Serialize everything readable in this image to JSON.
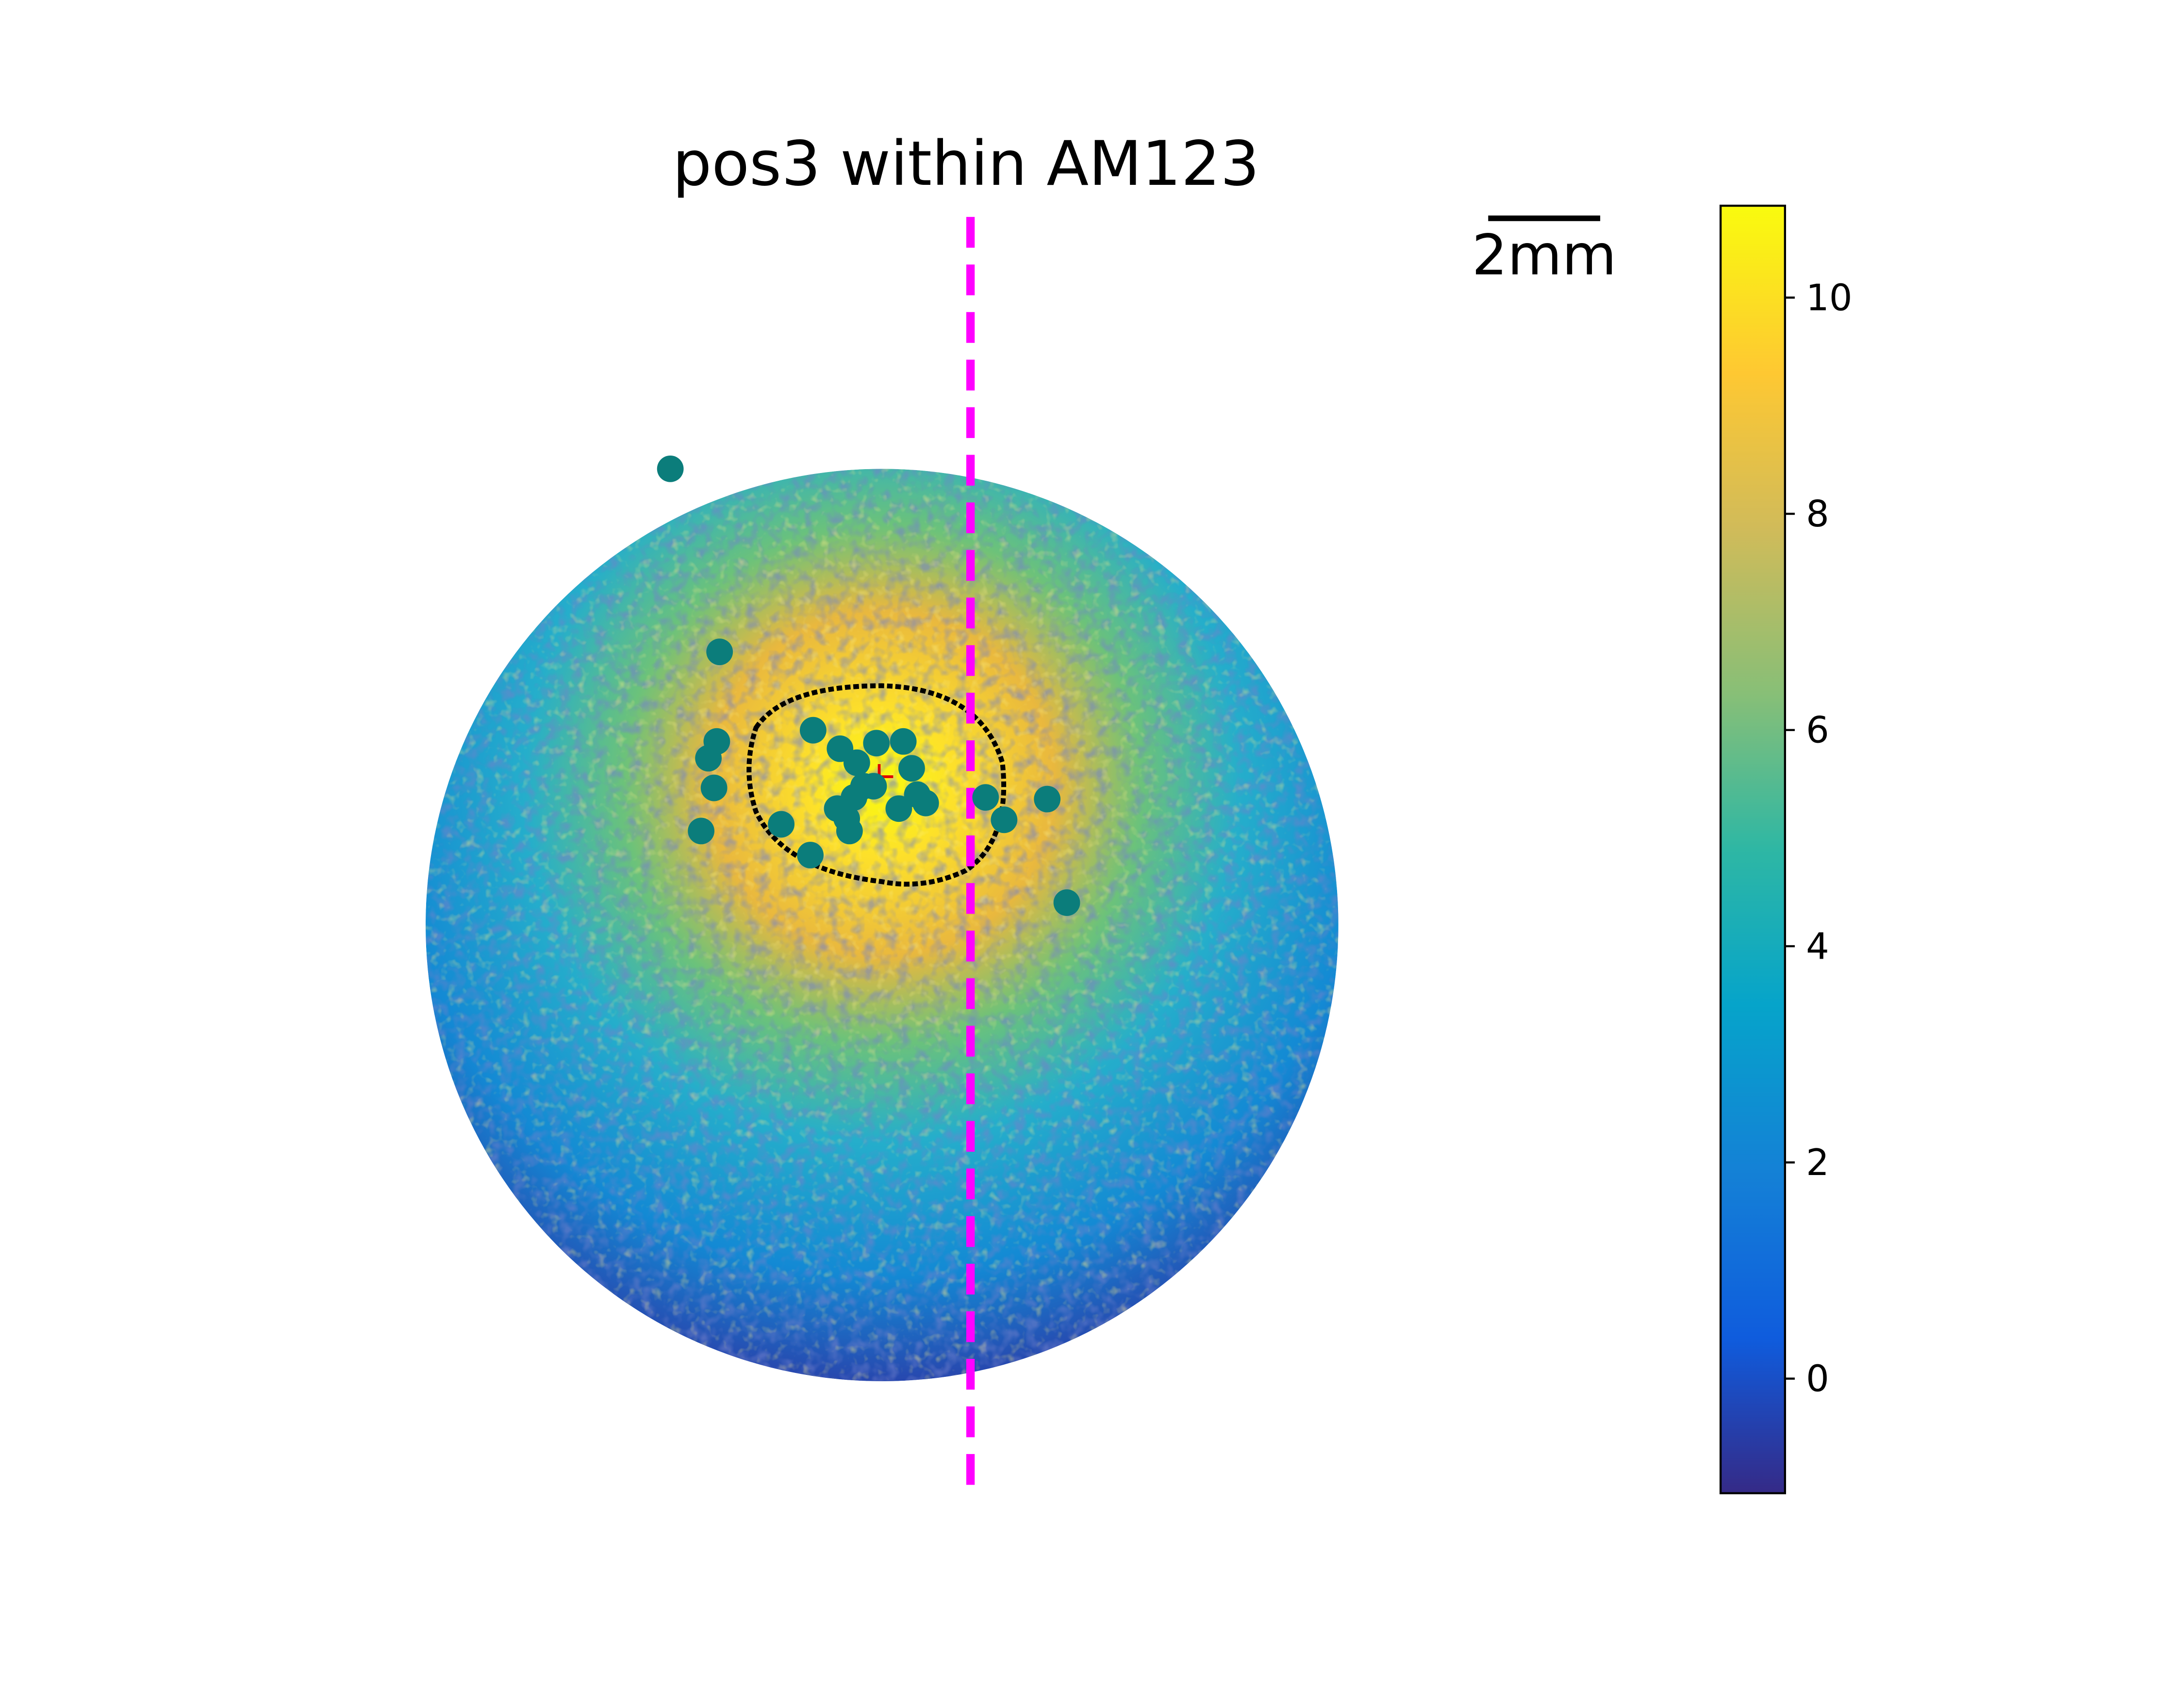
{
  "chart_data": {
    "type": "scatter",
    "title": "pos3 within AM123",
    "x": [
      -3.78,
      -2.9,
      -1.23,
      -2.95,
      -3.1,
      -3.0,
      -3.23,
      -1.8,
      -1.28,
      -0.75,
      -0.45,
      -0.1,
      0.38,
      0.53,
      -0.33,
      -0.5,
      -0.8,
      -0.63,
      -0.58,
      -0.15,
      0.63,
      0.78,
      0.3,
      1.85,
      2.18,
      2.95,
      3.3
    ],
    "y": [
      8.15,
      4.88,
      3.48,
      3.28,
      2.98,
      2.45,
      1.68,
      1.8,
      1.25,
      3.15,
      2.9,
      3.25,
      3.28,
      2.8,
      2.48,
      2.28,
      2.08,
      1.9,
      1.68,
      2.48,
      2.33,
      2.18,
      2.08,
      2.28,
      1.88,
      2.25,
      0.4
    ],
    "color": "#0b7d7b",
    "vline_x": 1.58,
    "vline_color": "#ff00ff",
    "scalebar_length": 2,
    "scalebar_label": "2mm",
    "colorbar": {
      "lim": [
        -1.06,
        10.85
      ],
      "ticks": [
        0,
        2,
        4,
        6,
        8,
        10
      ]
    }
  }
}
